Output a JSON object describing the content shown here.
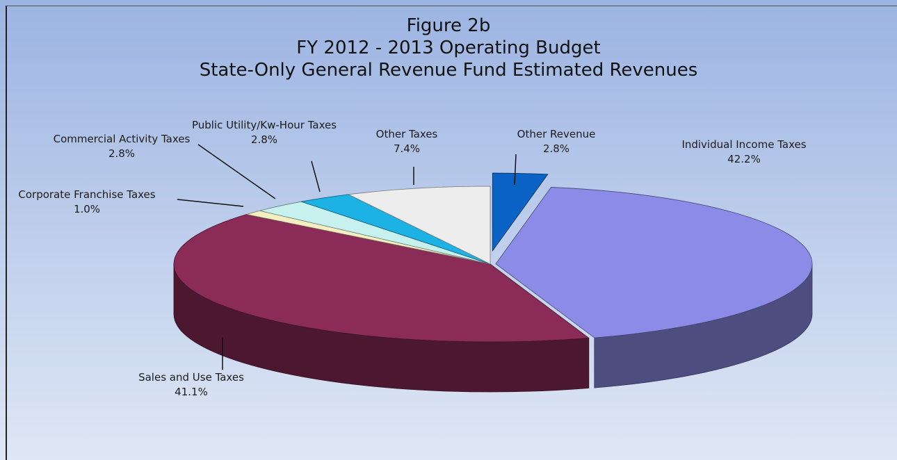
{
  "chart_data": {
    "type": "pie",
    "title": "Figure 2b",
    "subtitle": [
      "FY 2012 - 2013 Operating Budget",
      "State-Only General Revenue Fund Estimated Revenues"
    ],
    "categories": [
      "Other Revenue",
      "Individual Income Taxes",
      "Sales and Use Taxes",
      "Corporate Franchise Taxes",
      "Commercial Activity Taxes",
      "Public Utility/Kw-Hour Taxes",
      "Other Taxes"
    ],
    "values": [
      2.8,
      42.2,
      41.1,
      1.0,
      2.8,
      2.8,
      7.4
    ],
    "value_labels": [
      "2.8%",
      "42.2%",
      "41.1%",
      "1.0%",
      "2.8%",
      "2.8%",
      "7.4%"
    ],
    "colors": [
      "#0a62c4",
      "#8c8ce8",
      "#8b2c58",
      "#f4efc0",
      "#c6f1ef",
      "#1db2e6",
      "#ededed"
    ]
  }
}
